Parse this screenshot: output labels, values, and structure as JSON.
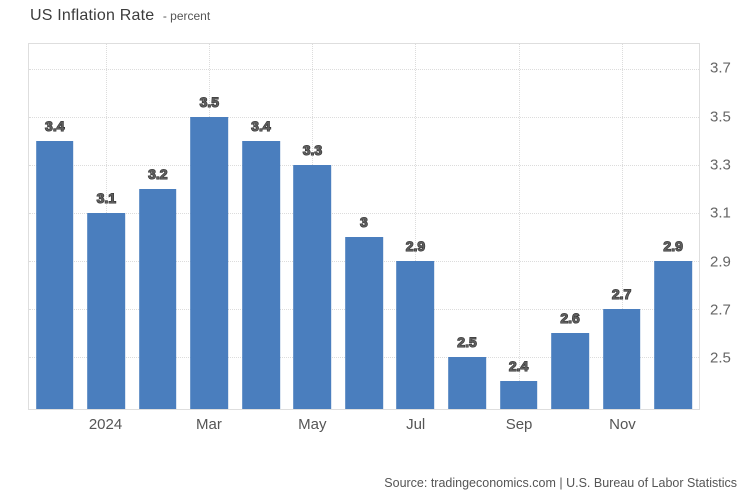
{
  "title": {
    "main": "US Inflation Rate",
    "suffix": "- percent"
  },
  "source": "Source: tradingeconomics.com | U.S. Bureau of Labor Statistics",
  "chart_data": {
    "type": "bar",
    "title": "US Inflation Rate",
    "ylabel": "percent",
    "values": [
      3.4,
      3.1,
      3.2,
      3.5,
      3.4,
      3.3,
      3.0,
      2.9,
      2.5,
      2.4,
      2.6,
      2.7,
      2.9
    ],
    "bar_labels": [
      "3.4",
      "3.1",
      "3.2",
      "3.5",
      "3.4",
      "3.3",
      "3",
      "2.9",
      "2.5",
      "2.4",
      "2.6",
      "2.7",
      "2.9"
    ],
    "x_ticks": [
      {
        "bar_index": 1,
        "label": "2024"
      },
      {
        "bar_index": 3,
        "label": "Mar"
      },
      {
        "bar_index": 5,
        "label": "May"
      },
      {
        "bar_index": 7,
        "label": "Jul"
      },
      {
        "bar_index": 9,
        "label": "Sep"
      },
      {
        "bar_index": 11,
        "label": "Nov"
      }
    ],
    "y_ticks": [
      3.7,
      3.5,
      3.3,
      3.1,
      2.9,
      2.7,
      2.5
    ],
    "ylim": [
      2.285,
      3.805
    ],
    "grid": "dotted",
    "y_axis_position": "right",
    "bar_color": "#4a7ebe",
    "label_color": "#2c2c2c",
    "grid_color": "#dcdcdc"
  }
}
